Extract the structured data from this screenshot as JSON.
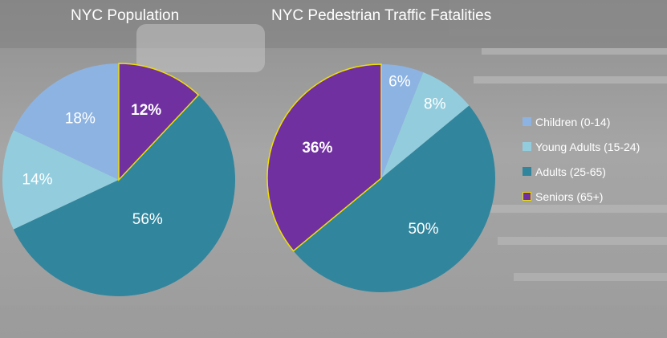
{
  "colors": {
    "children": "#8db3e2",
    "young_adults": "#93cddd",
    "adults": "#31859c",
    "seniors": "#7030a0",
    "seniors_outline": "#f0e000"
  },
  "chart_data": [
    {
      "type": "pie",
      "title": "NYC Population",
      "categories": [
        "Children (0-14)",
        "Young Adults (15-24)",
        "Adults (25-65)",
        "Seniors (65+)"
      ],
      "values": [
        18,
        14,
        56,
        12
      ],
      "labels": [
        "18%",
        "14%",
        "56%",
        "12%"
      ],
      "bold_labels": [
        false,
        false,
        false,
        true
      ],
      "start_angle_deg": 0,
      "order": "counterclockwise from top: Children, Young Adults, Adults, Seniors"
    },
    {
      "type": "pie",
      "title": "NYC Pedestrian Traffic Fatalities",
      "categories": [
        "Children (0-14)",
        "Young Adults (15-24)",
        "Adults (25-65)",
        "Seniors (65+)"
      ],
      "values": [
        6,
        8,
        50,
        36
      ],
      "labels": [
        "6%",
        "8%",
        "50%",
        "36%"
      ],
      "bold_labels": [
        false,
        false,
        false,
        true
      ],
      "start_angle_deg": 0,
      "order": "clockwise from top: Children, Young Adults, Adults, Seniors"
    }
  ],
  "legend": {
    "placement": "right",
    "items": [
      {
        "label": "Children (0-14)",
        "color_key": "children"
      },
      {
        "label": "Young Adults (15-24)",
        "color_key": "young_adults"
      },
      {
        "label": "Adults (25-65)",
        "color_key": "adults"
      },
      {
        "label": "Seniors (65+)",
        "color_key": "seniors"
      }
    ]
  }
}
